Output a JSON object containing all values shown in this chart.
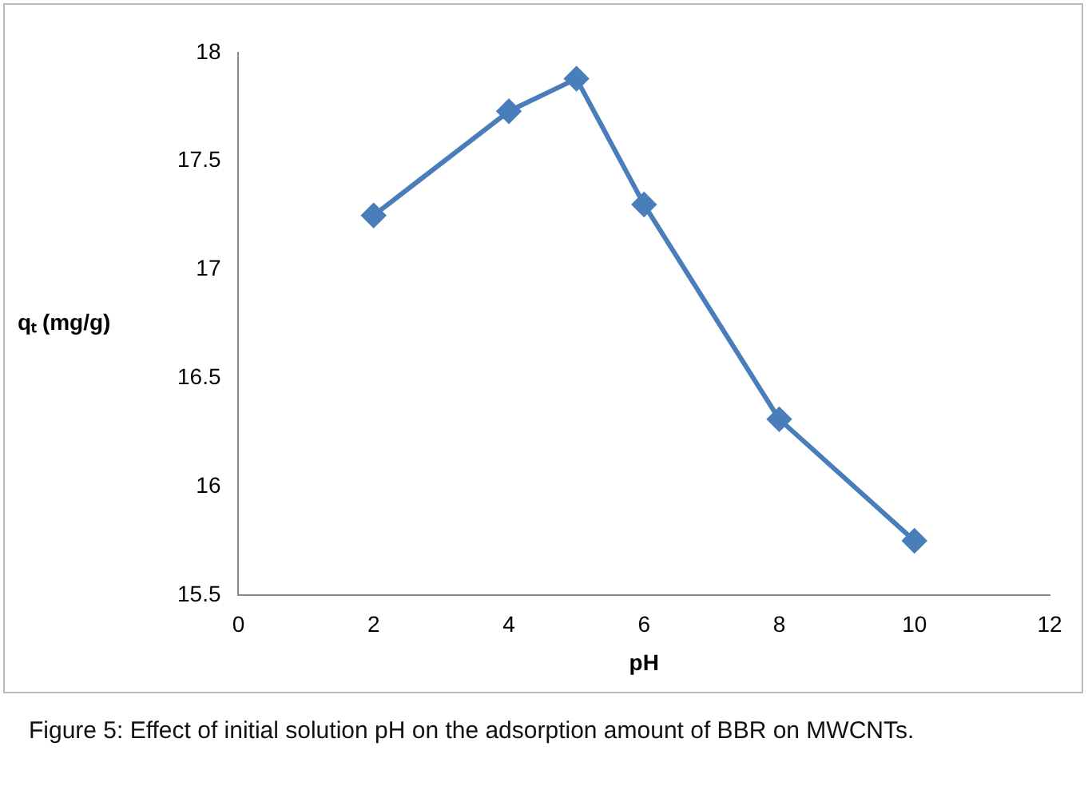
{
  "chart_data": {
    "type": "line",
    "xlabel": "pH",
    "ylabel": "qₜ (mg/g)",
    "x": [
      2,
      4,
      5,
      6,
      8,
      10
    ],
    "series": [
      {
        "color": "#4a7ebb",
        "values": [
          17.25,
          17.73,
          17.88,
          17.3,
          16.31,
          15.75
        ]
      }
    ],
    "xlim": [
      0,
      12
    ],
    "xticks": [
      0,
      2,
      4,
      6,
      8,
      10,
      12
    ],
    "ylim": [
      15.5,
      18
    ],
    "yticks": [
      15.5,
      16,
      16.5,
      17,
      17.5,
      18
    ],
    "grid": false,
    "legend": false,
    "marker": "diamond",
    "line_style": "solid",
    "annotations": [
      "Figure 5: Effect of initial solution pH on the adsorption amount of BBR on MWCNTs."
    ]
  }
}
